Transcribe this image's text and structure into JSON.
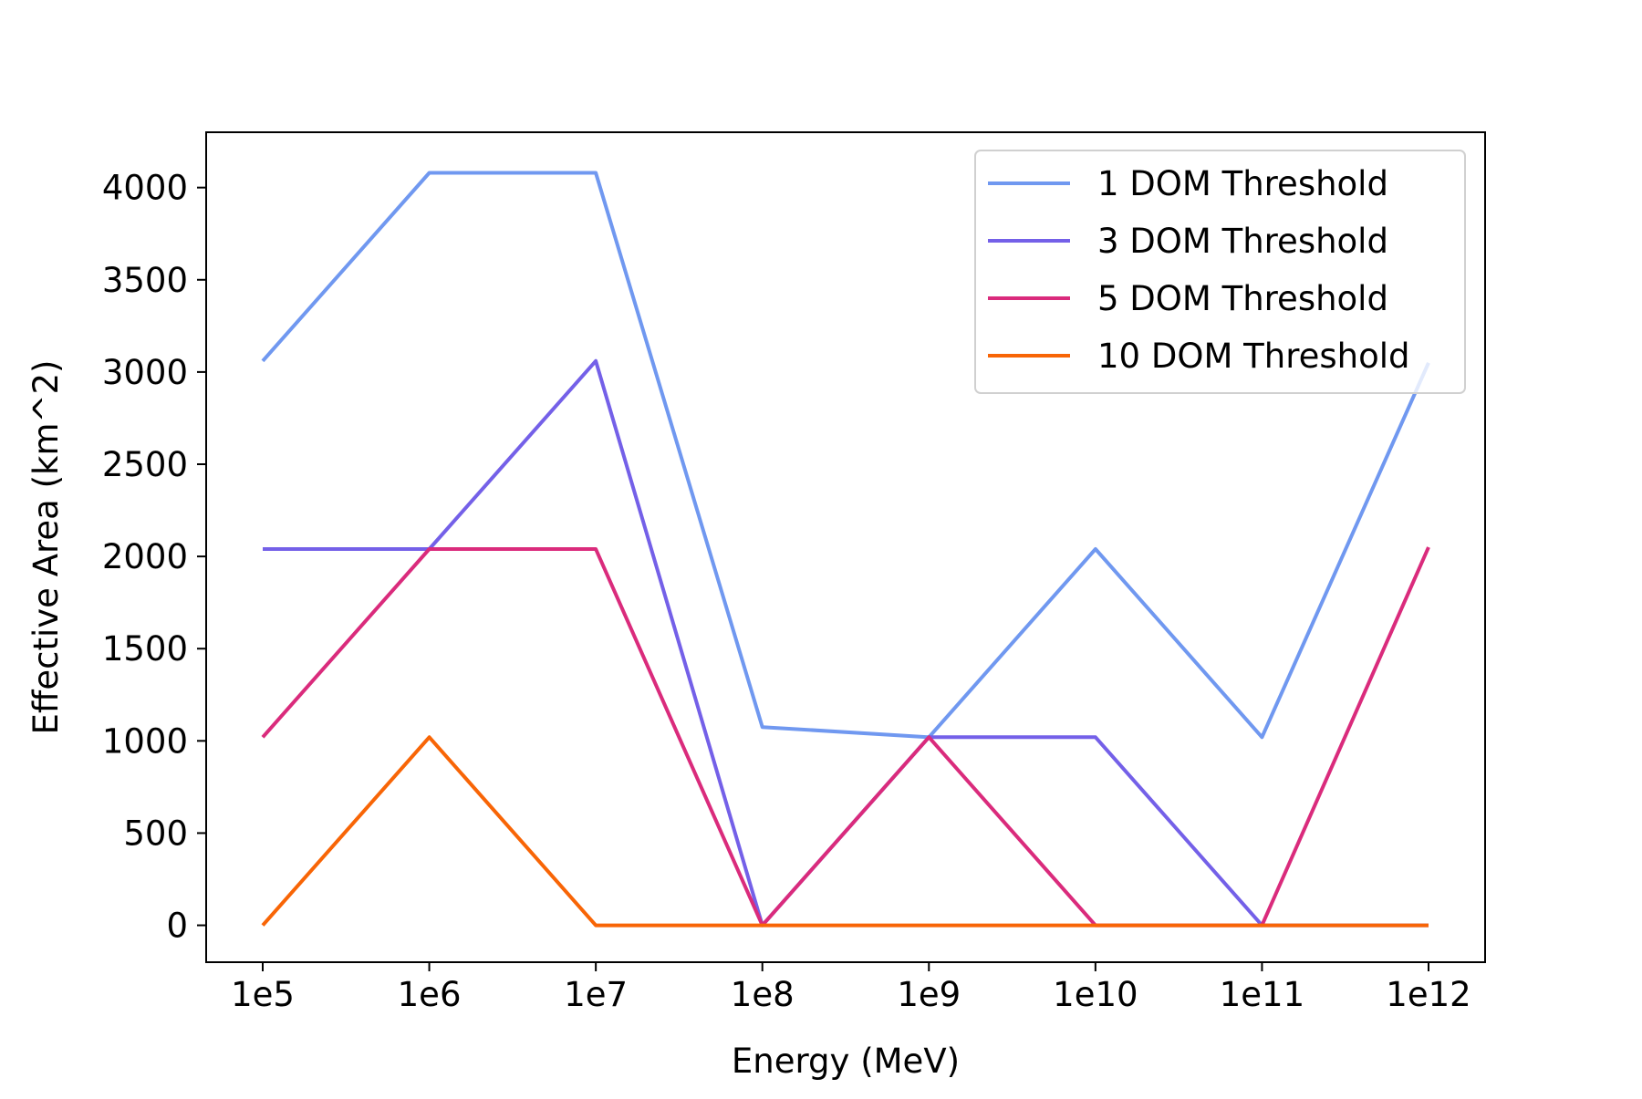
{
  "chart_data": {
    "type": "line",
    "title": "",
    "xlabel": "Energy (MeV)",
    "ylabel": "Effective Area (km^2)",
    "x": [
      "1e5",
      "1e6",
      "1e7",
      "1e8",
      "1e9",
      "1e10",
      "1e11",
      "1e12"
    ],
    "ylim": [
      -200,
      4300
    ],
    "yticks": [
      0,
      500,
      1000,
      1500,
      2000,
      2500,
      3000,
      3500,
      4000
    ],
    "grid": false,
    "legend_position": "top-right",
    "series": [
      {
        "name": "1 DOM Threshold",
        "color": "#7098F0",
        "values": [
          3060,
          4080,
          4080,
          1075,
          1020,
          2040,
          1020,
          3050
        ]
      },
      {
        "name": "3 DOM Threshold",
        "color": "#7460E8",
        "values": [
          2040,
          2040,
          3060,
          0,
          1020,
          1020,
          0,
          0
        ]
      },
      {
        "name": "5 DOM Threshold",
        "color": "#DA2B7C",
        "values": [
          1020,
          2040,
          2040,
          0,
          1020,
          0,
          0,
          2050
        ]
      },
      {
        "name": "10 DOM Threshold",
        "color": "#F86506",
        "values": [
          0,
          1020,
          0,
          0,
          0,
          0,
          0,
          0
        ]
      }
    ]
  }
}
